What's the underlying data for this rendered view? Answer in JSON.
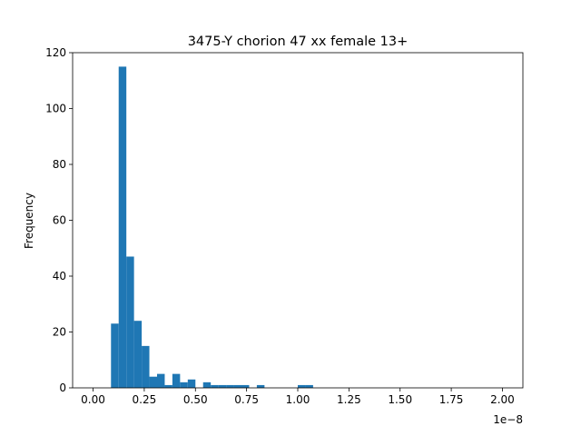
{
  "chart_data": {
    "type": "histogram",
    "title": "3475-Y chorion 47 xx female 13+",
    "xlabel": "",
    "ylabel": "Frequency",
    "x_offset_label": "1e−8",
    "x_scale": 1e-08,
    "xlim": [
      -0.1,
      2.1
    ],
    "ylim": [
      0,
      120
    ],
    "x_ticks": [
      "0.00",
      "0.25",
      "0.50",
      "0.75",
      "1.00",
      "1.25",
      "1.50",
      "1.75",
      "2.00"
    ],
    "y_ticks": [
      "0",
      "20",
      "40",
      "60",
      "80",
      "100",
      "120"
    ],
    "grid": false,
    "legend": "none",
    "bar_color": "#1f77b4",
    "bins": [
      {
        "x0": 0.0875,
        "x1": 0.125,
        "count": 23
      },
      {
        "x0": 0.125,
        "x1": 0.1625,
        "count": 115
      },
      {
        "x0": 0.1625,
        "x1": 0.2,
        "count": 47
      },
      {
        "x0": 0.2,
        "x1": 0.2375,
        "count": 24
      },
      {
        "x0": 0.2375,
        "x1": 0.275,
        "count": 15
      },
      {
        "x0": 0.275,
        "x1": 0.3125,
        "count": 4
      },
      {
        "x0": 0.3125,
        "x1": 0.35,
        "count": 5
      },
      {
        "x0": 0.35,
        "x1": 0.3875,
        "count": 1
      },
      {
        "x0": 0.3875,
        "x1": 0.425,
        "count": 5
      },
      {
        "x0": 0.425,
        "x1": 0.4625,
        "count": 2
      },
      {
        "x0": 0.4625,
        "x1": 0.5,
        "count": 3
      },
      {
        "x0": 0.5375,
        "x1": 0.575,
        "count": 2
      },
      {
        "x0": 0.575,
        "x1": 0.6125,
        "count": 1
      },
      {
        "x0": 0.6125,
        "x1": 0.65,
        "count": 1
      },
      {
        "x0": 0.65,
        "x1": 0.6875,
        "count": 1
      },
      {
        "x0": 0.6875,
        "x1": 0.725,
        "count": 1
      },
      {
        "x0": 0.725,
        "x1": 0.7625,
        "count": 1
      },
      {
        "x0": 0.8,
        "x1": 0.8375,
        "count": 1
      },
      {
        "x0": 1.0,
        "x1": 1.0375,
        "count": 1
      },
      {
        "x0": 1.0375,
        "x1": 1.075,
        "count": 1
      }
    ]
  }
}
